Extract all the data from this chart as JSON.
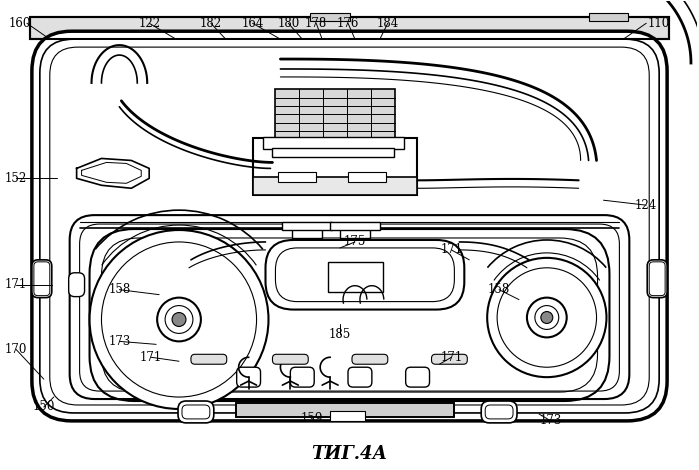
{
  "title": "ΤИГ.4А",
  "bg_color": "#ffffff",
  "line_color": "#000000",
  "fig_width": 6.99,
  "fig_height": 4.7,
  "labels": [
    [
      "160",
      18,
      22
    ],
    [
      "122",
      148,
      22
    ],
    [
      "182",
      210,
      22
    ],
    [
      "164",
      252,
      22
    ],
    [
      "180",
      288,
      22
    ],
    [
      "178",
      316,
      22
    ],
    [
      "176",
      348,
      22
    ],
    [
      "184",
      388,
      22
    ],
    [
      "110",
      661,
      22
    ],
    [
      "152",
      14,
      178
    ],
    [
      "124",
      648,
      205
    ],
    [
      "150",
      42,
      408
    ],
    [
      "170",
      14,
      350
    ],
    [
      "171",
      14,
      285
    ],
    [
      "158",
      118,
      290
    ],
    [
      "173",
      118,
      342
    ],
    [
      "171",
      150,
      358
    ],
    [
      "175",
      355,
      242
    ],
    [
      "171",
      452,
      250
    ],
    [
      "171",
      452,
      358
    ],
    [
      "158",
      500,
      290
    ],
    [
      "185",
      340,
      335
    ],
    [
      "159",
      312,
      420
    ],
    [
      "173",
      552,
      422
    ]
  ]
}
